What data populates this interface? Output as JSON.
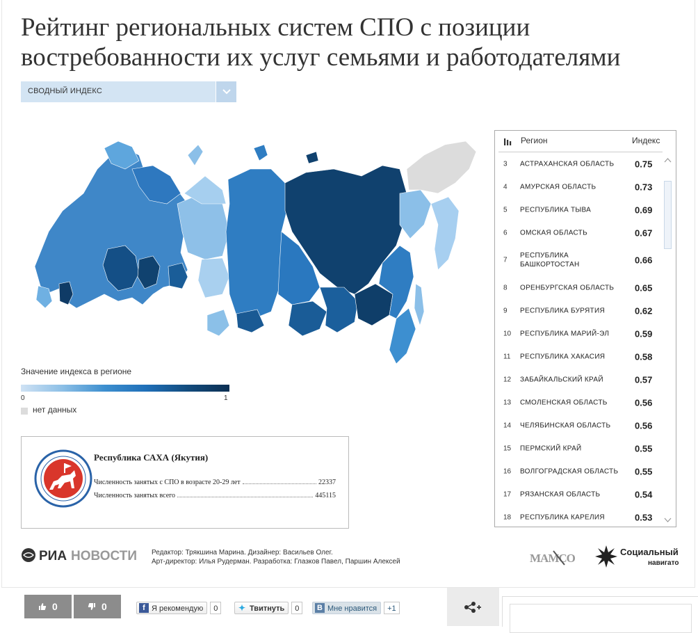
{
  "title": "Рейтинг региональных систем СПО с позиции востребованности их услуг семьями и работодателями",
  "dropdown": {
    "selected": "СВОДНЫЙ ИНДЕКС"
  },
  "legend": {
    "title": "Значение индекса в регионе",
    "min": "0",
    "max": "1",
    "no_data": "нет данных"
  },
  "info": {
    "region": "Республика САХА (Якутия)",
    "rows": [
      {
        "label": "Численность занятых с СПО в возрасте 20-29 лет",
        "value": "22337"
      },
      {
        "label": "Численность занятых всего",
        "value": "445115"
      }
    ]
  },
  "table": {
    "header": {
      "region": "Регион",
      "index": "Индекс"
    },
    "rows": [
      {
        "rank": "3",
        "region": "Астраханская область",
        "value": "0.75"
      },
      {
        "rank": "4",
        "region": "Амурская область",
        "value": "0.73"
      },
      {
        "rank": "5",
        "region": "Республика Тыва",
        "value": "0.69"
      },
      {
        "rank": "6",
        "region": "Омская область",
        "value": "0.67"
      },
      {
        "rank": "7",
        "region": "Республика Башкортостан",
        "value": "0.66"
      },
      {
        "rank": "8",
        "region": "Оренбургская область",
        "value": "0.65"
      },
      {
        "rank": "9",
        "region": "Республика Бурятия",
        "value": "0.62"
      },
      {
        "rank": "10",
        "region": "Республика Марий-Эл",
        "value": "0.59"
      },
      {
        "rank": "11",
        "region": "Республика Хакасия",
        "value": "0.58"
      },
      {
        "rank": "12",
        "region": "Забайкальский край",
        "value": "0.57"
      },
      {
        "rank": "13",
        "region": "Смоленская область",
        "value": "0.56"
      },
      {
        "rank": "14",
        "region": "Челябинская область",
        "value": "0.56"
      },
      {
        "rank": "15",
        "region": "Пермский край",
        "value": "0.55"
      },
      {
        "rank": "16",
        "region": "Волгоградская область",
        "value": "0.55"
      },
      {
        "rank": "17",
        "region": "Рязанская область",
        "value": "0.54"
      },
      {
        "rank": "18",
        "region": "Республика Карелия",
        "value": "0.53"
      }
    ]
  },
  "footer": {
    "logo_ria": "РИА",
    "logo_novosti": "НОВОСТИ",
    "credits_line1": "Редактор: Трякшина Марина. Дизайнер: Васильев Олег.",
    "credits_line2": "Арт-директор: Илья Рудерман. Разработка: Глазков Павел, Паршин Алексей",
    "mamso": "МАМСО",
    "socnav_line1": "Социальный",
    "socnav_line2": "навигатор"
  },
  "social": {
    "likes": "0",
    "dislikes": "0",
    "fb_label": "Я рекомендую",
    "fb_count": "0",
    "tw_label": "Твитнуть",
    "tw_count": "0",
    "vk_label": "Мне нравится",
    "vk_plus": "+1"
  },
  "colors": {
    "accent": "#1f6fb8",
    "dark": "#0c3a63",
    "light": "#9cc8ea",
    "nodata": "#dcdcdc"
  }
}
